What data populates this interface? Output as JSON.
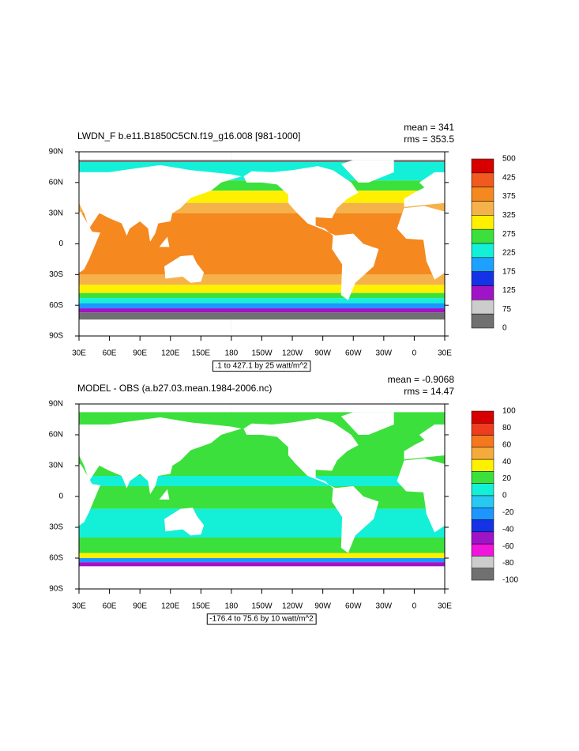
{
  "panels": [
    {
      "title": "LWDN_F b.e11.B1850C5CN.f19_g16.008 [981-1000]",
      "mean": "mean = 341",
      "rms": "rms = 353.5",
      "y_labels": [
        "90N",
        "60N",
        "30N",
        "0",
        "30S",
        "60S",
        "90S"
      ],
      "x_labels": [
        "30E",
        "60E",
        "90E",
        "120E",
        "150E",
        "180",
        "150W",
        "120W",
        "90W",
        "60W",
        "30W",
        "0",
        "30E"
      ],
      "range_note": ".1 to 427.1 by 25 watt/m^2",
      "colorbar": {
        "labels": [
          500,
          425,
          375,
          325,
          275,
          225,
          175,
          125,
          75,
          0
        ],
        "colors": [
          "#d70000",
          "#f05a1e",
          "#f5881e",
          "#f5b24a",
          "#fff000",
          "#3ce03c",
          "#14f0d7",
          "#1ea0ff",
          "#1432e6",
          "#a014c8",
          "#cccccc",
          "#707070"
        ]
      }
    },
    {
      "title": "MODEL - OBS (a.b27.03.mean.1984-2006.nc)",
      "mean": "mean = -0.9068",
      "rms": "rms = 14.47",
      "y_labels": [
        "90N",
        "60N",
        "30N",
        "0",
        "30S",
        "60S",
        "90S"
      ],
      "x_labels": [
        "30E",
        "60E",
        "90E",
        "120E",
        "150E",
        "180",
        "150W",
        "120W",
        "90W",
        "60W",
        "30W",
        "0",
        "30E"
      ],
      "range_note": "-176.4 to 75.6 by 10 watt/m^2",
      "colorbar": {
        "labels": [
          100,
          80,
          60,
          40,
          20,
          0,
          -20,
          -40,
          -60,
          -80,
          -100
        ],
        "colors": [
          "#d70000",
          "#f03c1e",
          "#f5781e",
          "#f5aa3c",
          "#fff000",
          "#3ce03c",
          "#14f0d7",
          "#28c8f0",
          "#1e96ff",
          "#1432e6",
          "#a014c8",
          "#f014dc",
          "#cccccc",
          "#707070"
        ]
      }
    }
  ]
}
